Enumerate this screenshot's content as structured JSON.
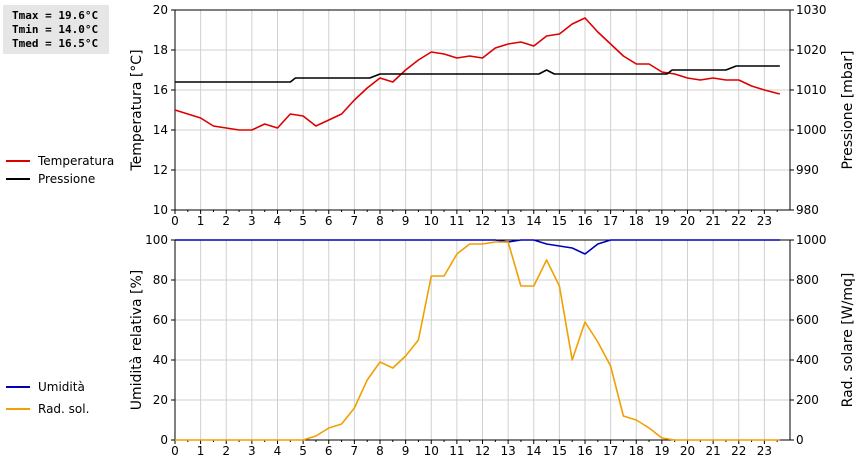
{
  "stats": {
    "tmax": "Tmax = 19.6°C",
    "tmin": "Tmin = 14.0°C",
    "tmed": "Tmed = 16.5°C"
  },
  "chart_data": [
    {
      "type": "line",
      "x_ticks": [
        0,
        1,
        2,
        3,
        4,
        5,
        6,
        7,
        8,
        9,
        10,
        11,
        12,
        13,
        14,
        15,
        16,
        17,
        18,
        19,
        20,
        21,
        22,
        23
      ],
      "xlim": [
        0,
        24
      ],
      "ylabel": "Temperatura [°C]",
      "y2label": "Pressione [mbar]",
      "ylim": [
        10,
        20
      ],
      "y_ticks": [
        10,
        12,
        14,
        16,
        18,
        20
      ],
      "y2lim": [
        980,
        1030
      ],
      "y2_ticks": [
        980,
        990,
        1000,
        1010,
        1020,
        1030
      ],
      "grid": true,
      "legend_placement": "left",
      "series": [
        {
          "name": "Temperatura",
          "axis": "left",
          "color": "#dd0000",
          "x": [
            0,
            0.5,
            1,
            1.5,
            2,
            2.5,
            3,
            3.5,
            4,
            4.5,
            5,
            5.5,
            6,
            6.5,
            7,
            7.5,
            8,
            8.5,
            9,
            9.5,
            10,
            10.5,
            11,
            11.5,
            12,
            12.5,
            13,
            13.5,
            14,
            14.5,
            15,
            15.5,
            16,
            16.5,
            17,
            17.5,
            18,
            18.5,
            19,
            19.5,
            20,
            20.5,
            21,
            21.5,
            22,
            22.5,
            23,
            23.6
          ],
          "values": [
            15.0,
            14.8,
            14.6,
            14.2,
            14.1,
            14.0,
            14.0,
            14.3,
            14.1,
            14.8,
            14.7,
            14.2,
            14.5,
            14.8,
            15.5,
            16.1,
            16.6,
            16.4,
            17.0,
            17.5,
            17.9,
            17.8,
            17.6,
            17.7,
            17.6,
            18.1,
            18.3,
            18.4,
            18.2,
            18.7,
            18.8,
            19.3,
            19.6,
            18.9,
            18.3,
            17.7,
            17.3,
            17.3,
            16.9,
            16.8,
            16.6,
            16.5,
            16.6,
            16.5,
            16.5,
            16.2,
            16.0,
            15.8
          ]
        },
        {
          "name": "Pressione",
          "axis": "right",
          "color": "#000000",
          "x": [
            0,
            4.5,
            4.7,
            7.6,
            8.0,
            14.2,
            14.5,
            14.8,
            19.2,
            19.4,
            21.5,
            21.9,
            23.6
          ],
          "values": [
            1012,
            1012,
            1013,
            1013,
            1014,
            1014,
            1015,
            1014,
            1014,
            1015,
            1015,
            1016,
            1016
          ]
        }
      ]
    },
    {
      "type": "line",
      "x_ticks": [
        0,
        1,
        2,
        3,
        4,
        5,
        6,
        7,
        8,
        9,
        10,
        11,
        12,
        13,
        14,
        15,
        16,
        17,
        18,
        19,
        20,
        21,
        22,
        23
      ],
      "xlim": [
        0,
        24
      ],
      "ylabel": "Umidità relativa [%]",
      "y2label": "Rad. solare [W/mq]",
      "ylim": [
        0,
        100
      ],
      "y_ticks": [
        0,
        20,
        40,
        60,
        80,
        100
      ],
      "y2lim": [
        0,
        1000
      ],
      "y2_ticks": [
        0,
        200,
        400,
        600,
        800,
        1000
      ],
      "grid": true,
      "legend_placement": "left",
      "series": [
        {
          "name": "Umidità",
          "axis": "left",
          "color": "#0000bb",
          "x": [
            0,
            12.5,
            13.0,
            13.5,
            14.0,
            14.5,
            15.0,
            15.5,
            16.0,
            16.5,
            17.0,
            23.6
          ],
          "values": [
            100,
            100,
            99,
            100,
            100,
            98,
            97,
            96,
            93,
            98,
            100,
            100
          ]
        },
        {
          "name": "Rad. sol.",
          "axis": "right",
          "color": "#f0a000",
          "x": [
            0,
            5.0,
            5.5,
            6.0,
            6.5,
            7.0,
            7.5,
            8.0,
            8.5,
            9.0,
            9.5,
            10.0,
            10.5,
            11.0,
            11.5,
            12.0,
            12.5,
            13.0,
            13.5,
            14.0,
            14.5,
            15.0,
            15.5,
            16.0,
            16.5,
            17.0,
            17.5,
            18.0,
            18.5,
            19.0,
            19.5,
            20.0,
            23.6
          ],
          "values": [
            0,
            0,
            20,
            60,
            80,
            160,
            300,
            390,
            360,
            420,
            500,
            820,
            820,
            930,
            980,
            980,
            990,
            990,
            770,
            770,
            900,
            770,
            400,
            590,
            490,
            370,
            120,
            100,
            60,
            10,
            0,
            0,
            0
          ]
        }
      ]
    }
  ]
}
